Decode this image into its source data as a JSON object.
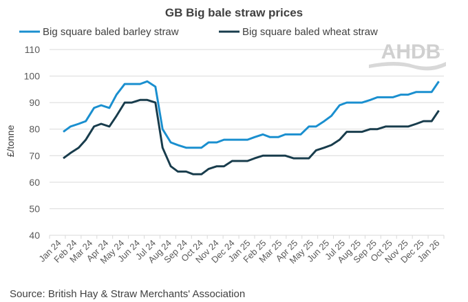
{
  "chart_data": {
    "type": "line",
    "title": "GB Big bale straw prices",
    "ylabel": "£/tonne",
    "xlabel": "",
    "ylim": [
      40,
      110
    ],
    "yticks": [
      40,
      50,
      60,
      70,
      80,
      90,
      100,
      110
    ],
    "grid": true,
    "legend_placement": "top",
    "xtick_labels": [
      "Jan 24",
      "Feb 24",
      "Mar 24",
      "Apr 24",
      "May 24",
      "Jun 24",
      "Jul 24",
      "Aug 24",
      "Sep 24",
      "Oct 24",
      "Nov 24",
      "Dec 24",
      "Jan 25",
      "Feb 25",
      "Mar 25",
      "Apr 25",
      "May 25",
      "Jun 25",
      "Jul 25",
      "Aug 25",
      "Sep 25",
      "Oct 25",
      "Nov 25",
      "Dec 25",
      "Jan 26"
    ],
    "x": [
      "2024-01-01",
      "2024-01-15",
      "2024-02-01",
      "2024-02-15",
      "2024-03-01",
      "2024-03-15",
      "2024-04-01",
      "2024-04-15",
      "2024-05-01",
      "2024-05-15",
      "2024-06-01",
      "2024-06-15",
      "2024-07-01",
      "2024-07-15",
      "2024-08-01",
      "2024-08-15",
      "2024-09-01",
      "2024-09-15",
      "2024-10-01",
      "2024-10-15",
      "2024-11-01",
      "2024-11-15",
      "2024-12-01",
      "2024-12-15",
      "2025-01-01",
      "2025-01-15",
      "2025-02-01",
      "2025-02-15",
      "2025-03-01",
      "2025-03-15",
      "2025-04-01",
      "2025-04-15",
      "2025-05-01",
      "2025-05-15",
      "2025-06-01",
      "2025-06-15",
      "2025-07-01",
      "2025-07-15",
      "2025-08-01",
      "2025-08-15",
      "2025-09-01",
      "2025-09-15",
      "2025-10-01",
      "2025-10-15",
      "2025-11-01",
      "2025-11-15",
      "2025-12-01",
      "2025-12-15",
      "2026-01-01",
      "2026-01-15"
    ],
    "series": [
      {
        "name": "Big square baled barley straw",
        "color": "#1a8fcf",
        "values": [
          79,
          81,
          82,
          83,
          88,
          89,
          88,
          93,
          97,
          97,
          97,
          98,
          96,
          80,
          75,
          74,
          73,
          73,
          73,
          75,
          75,
          76,
          76,
          76,
          76,
          77,
          78,
          77,
          77,
          78,
          78,
          78,
          81,
          81,
          83,
          85,
          89,
          90,
          90,
          90,
          91,
          92,
          92,
          92,
          93,
          93,
          94,
          94,
          94,
          98
        ]
      },
      {
        "name": "Big square baled wheat straw",
        "color": "#183c4c",
        "values": [
          69,
          71,
          73,
          76,
          81,
          82,
          81,
          85,
          90,
          90,
          91,
          91,
          90,
          73,
          66,
          64,
          64,
          63,
          63,
          65,
          66,
          66,
          68,
          68,
          68,
          69,
          70,
          70,
          70,
          70,
          69,
          69,
          69,
          72,
          73,
          74,
          76,
          79,
          79,
          79,
          80,
          80,
          81,
          81,
          81,
          81,
          82,
          83,
          83,
          87
        ]
      }
    ]
  },
  "source": "Source: British Hay & Straw Merchants' Association",
  "logo_text": "AHDB"
}
